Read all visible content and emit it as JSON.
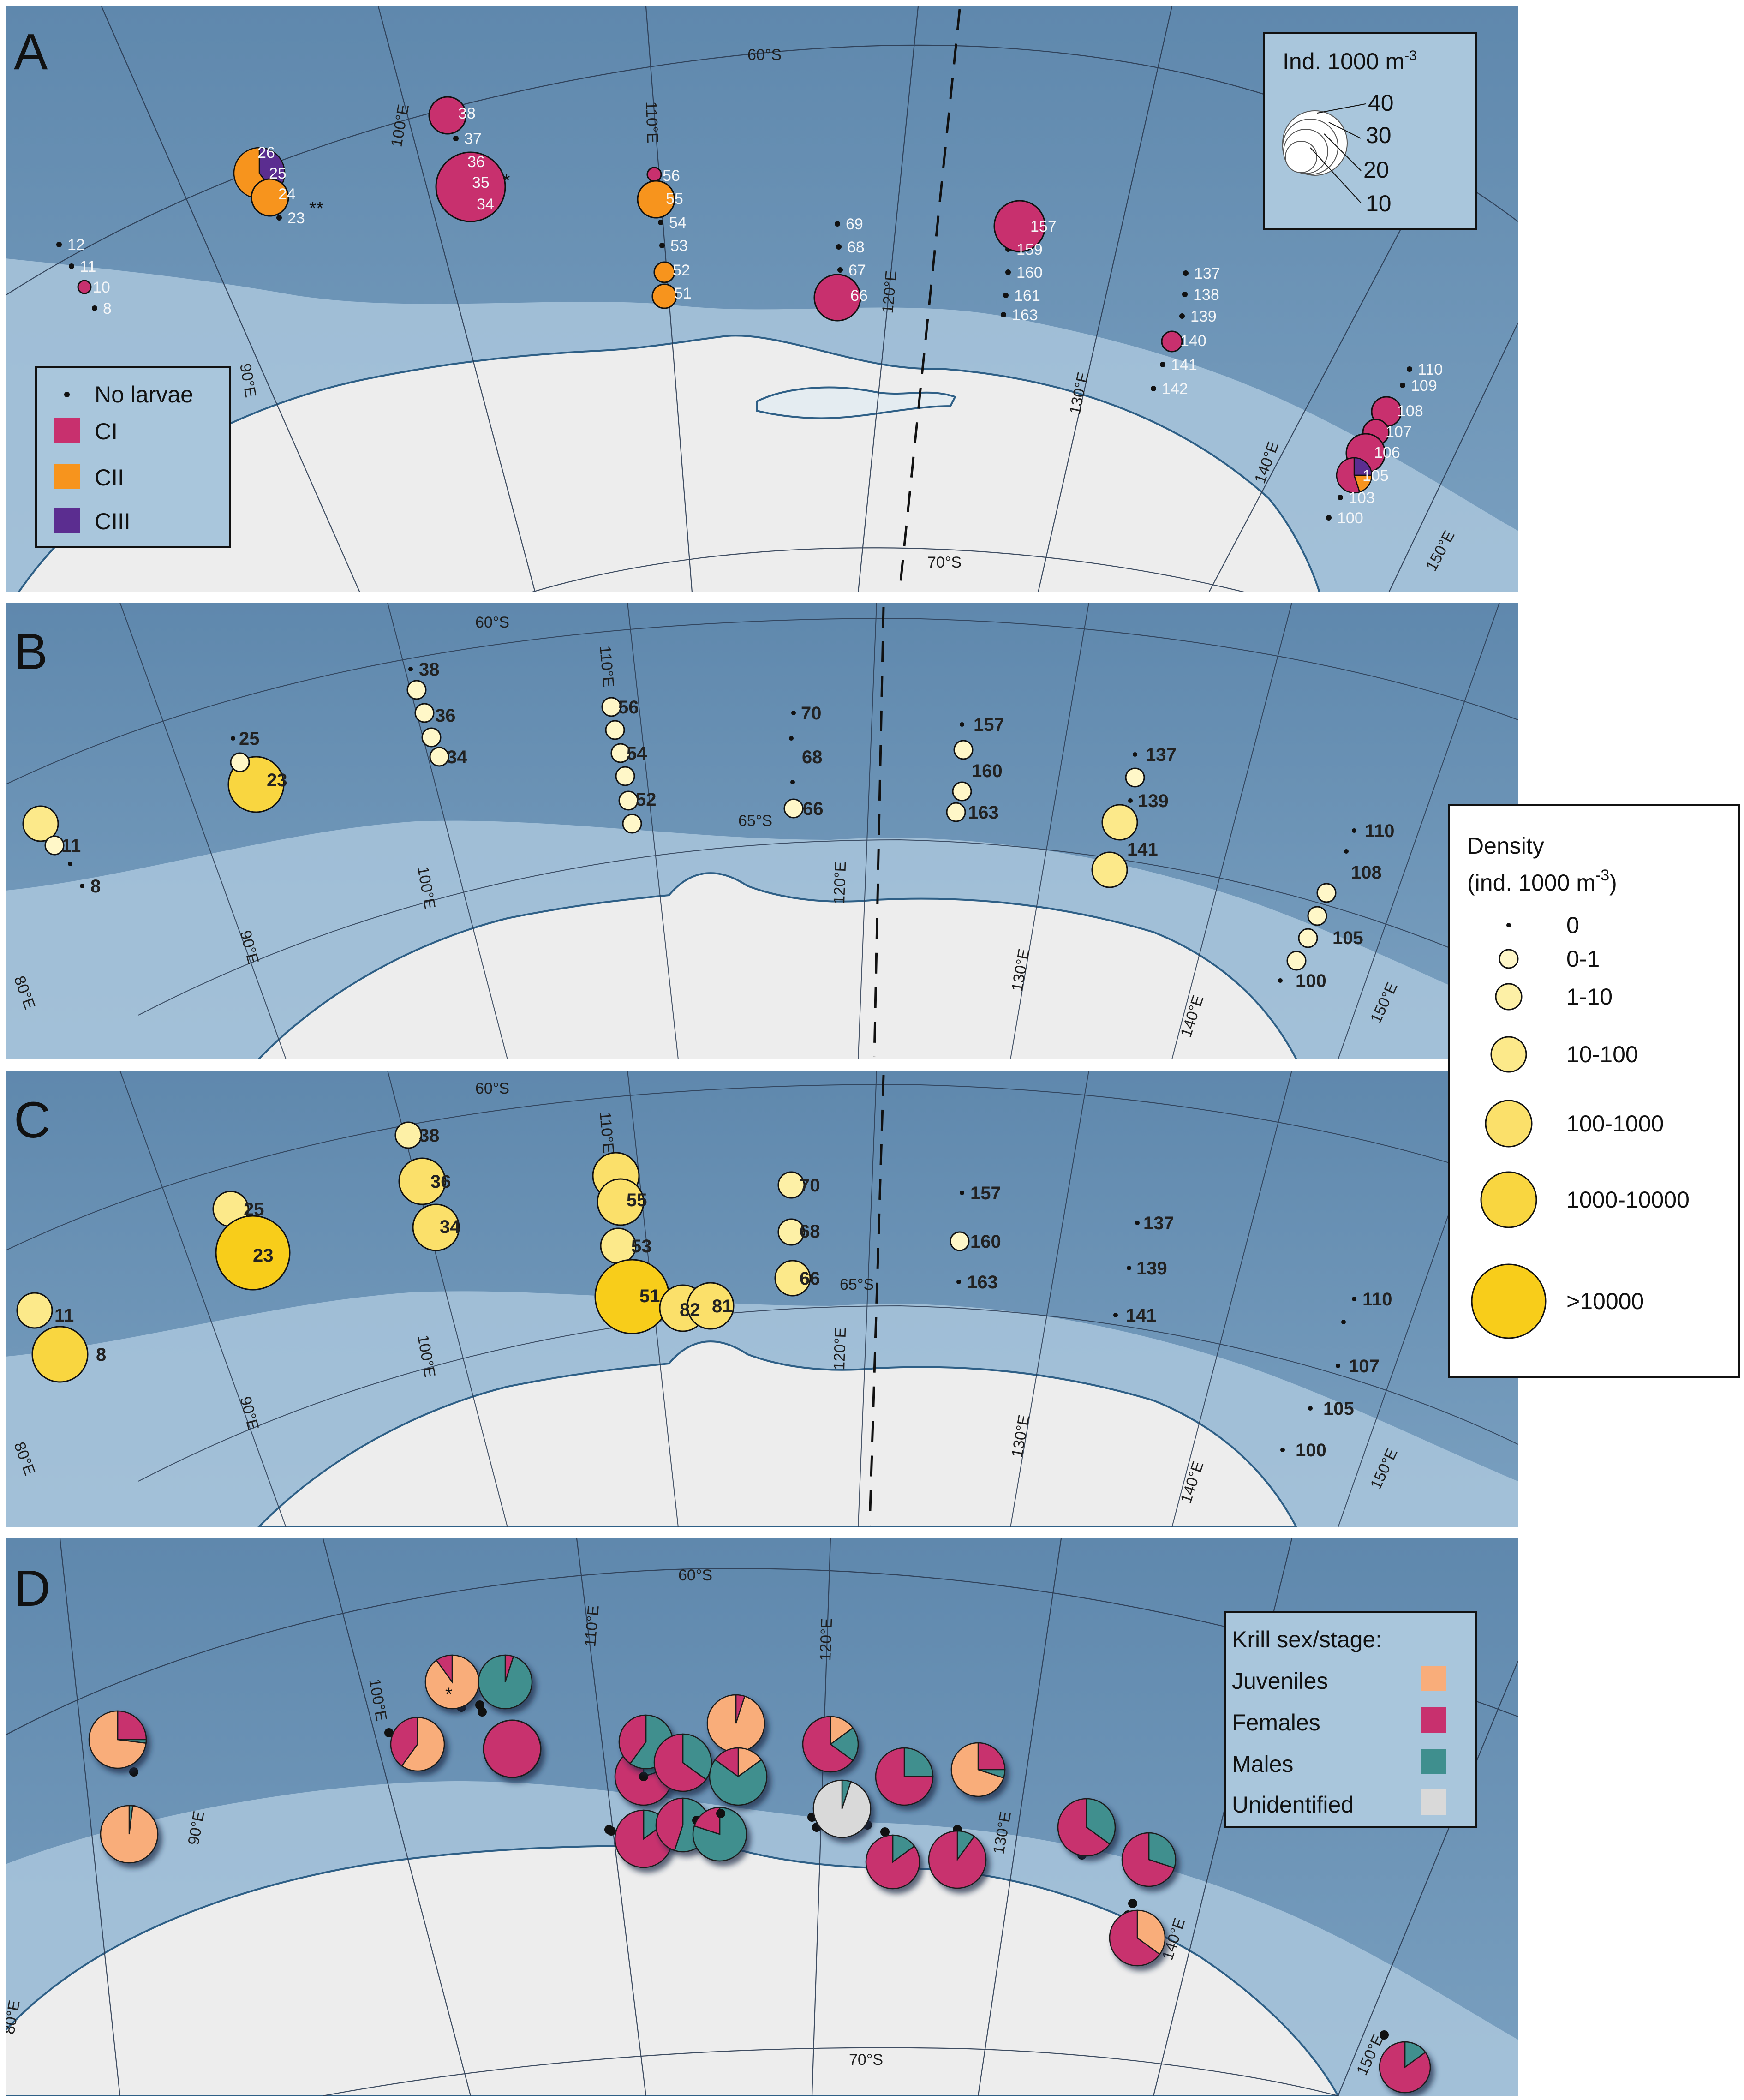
{
  "panels": [
    {
      "letter": "A",
      "grid": {
        "lat": [
          "60°S",
          "70°S"
        ],
        "lon": [
          "90°E",
          "100°E",
          "110°E",
          "120°E",
          "130°E",
          "140°E",
          "150°E"
        ]
      },
      "legend_stage": {
        "no_larvae": "No larvae",
        "items": [
          {
            "label": "CI",
            "color": "#c8306e"
          },
          {
            "label": "CII",
            "color": "#f7941d"
          },
          {
            "label": "CIII",
            "color": "#5b2d90"
          }
        ]
      },
      "legend_size": {
        "title": "Ind. 1000 m",
        "sup": "-3",
        "values": [
          "40",
          "30",
          "20",
          "10"
        ]
      },
      "stations": [
        "12",
        "11",
        "10",
        "8",
        "26",
        "25",
        "24",
        "23",
        "38",
        "37",
        "36",
        "35",
        "34",
        "56",
        "55",
        "54",
        "53",
        "52",
        "51",
        "69",
        "68",
        "67",
        "66",
        "157",
        "159",
        "160",
        "161",
        "163",
        "137",
        "138",
        "139",
        "140",
        "141",
        "142",
        "110",
        "109",
        "108",
        "107",
        "106",
        "105",
        "103",
        "100"
      ],
      "annotations": [
        "**",
        "*"
      ]
    },
    {
      "letter": "B",
      "grid": {
        "lat": [
          "60°S",
          "65°S"
        ],
        "lon": [
          "80°E",
          "90°E",
          "100°E",
          "110°E",
          "120°E",
          "130°E",
          "140°E",
          "150°E"
        ]
      },
      "stations": [
        "11",
        "8",
        "25",
        "23",
        "38",
        "36",
        "34",
        "56",
        "54",
        "52",
        "70",
        "68",
        "66",
        "157",
        "160",
        "163",
        "137",
        "139",
        "141",
        "110",
        "108",
        "105",
        "100"
      ]
    },
    {
      "letter": "C",
      "grid": {
        "lat": [
          "60°S",
          "65°S"
        ],
        "lon": [
          "80°E",
          "90°E",
          "100°E",
          "110°E",
          "120°E",
          "130°E",
          "140°E",
          "150°E"
        ]
      },
      "stations": [
        "11",
        "8",
        "25",
        "23",
        "38",
        "36",
        "34",
        "55",
        "53",
        "51",
        "82",
        "81",
        "70",
        "68",
        "66",
        "157",
        "160",
        "163",
        "137",
        "139",
        "141",
        "110",
        "107",
        "105",
        "100"
      ]
    },
    {
      "letter": "D",
      "grid": {
        "lat": [
          "60°S",
          "70°S"
        ],
        "lon": [
          "80°E",
          "90°E",
          "100°E",
          "110°E",
          "120°E",
          "130°E",
          "140°E",
          "150°E"
        ]
      },
      "legend_sex": {
        "title": "Krill sex/stage:",
        "items": [
          {
            "label": "Juveniles",
            "color": "#f9ad7a"
          },
          {
            "label": "Females",
            "color": "#c8306e"
          },
          {
            "label": "Males",
            "color": "#3f8f8e"
          },
          {
            "label": "Unidentified",
            "color": "#d9d9d9"
          }
        ]
      },
      "annotation": "*"
    }
  ],
  "density_legend": {
    "title_line1": "Density",
    "title_line2": "(ind. 1000 m",
    "sup": "-3",
    "title_close": ")",
    "classes": [
      "0",
      "0-1",
      "1-10",
      "10-100",
      "100-1000",
      "1000-10000",
      ">10000"
    ],
    "colors": [
      "#111111",
      "#fff7c8",
      "#fdf0a6",
      "#fce98a",
      "#fbe06a",
      "#f9d640",
      "#f8cd1a"
    ]
  },
  "colors": {
    "ocean": "#6a93b6",
    "shelf": "#a8c6dc",
    "land": "#ececec",
    "coast": "#2e5f86"
  }
}
